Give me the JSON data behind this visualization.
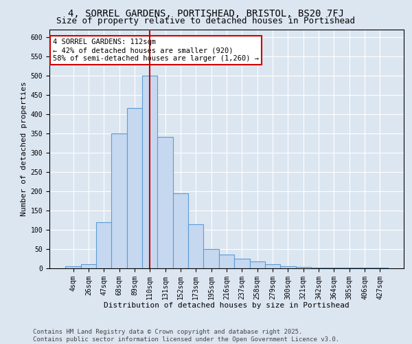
{
  "title_line1": "4, SORREL GARDENS, PORTISHEAD, BRISTOL, BS20 7FJ",
  "title_line2": "Size of property relative to detached houses in Portishead",
  "xlabel": "Distribution of detached houses by size in Portishead",
  "ylabel": "Number of detached properties",
  "categories": [
    "4sqm",
    "26sqm",
    "47sqm",
    "68sqm",
    "89sqm",
    "110sqm",
    "131sqm",
    "152sqm",
    "173sqm",
    "195sqm",
    "216sqm",
    "237sqm",
    "258sqm",
    "279sqm",
    "300sqm",
    "321sqm",
    "342sqm",
    "364sqm",
    "385sqm",
    "406sqm",
    "427sqm"
  ],
  "values": [
    5,
    10,
    120,
    350,
    415,
    500,
    340,
    195,
    115,
    50,
    35,
    25,
    17,
    11,
    5,
    3,
    2,
    1,
    1,
    1,
    2
  ],
  "bar_color": "#c5d8f0",
  "bar_edge_color": "#5b9bd5",
  "vline_x_idx": 5,
  "vline_color": "#cc0000",
  "annotation_text": "4 SORREL GARDENS: 112sqm\n← 42% of detached houses are smaller (920)\n58% of semi-detached houses are larger (1,260) →",
  "annotation_box_color": "#ffffff",
  "annotation_box_edge_color": "#cc0000",
  "ylim": [
    0,
    620
  ],
  "yticks": [
    0,
    50,
    100,
    150,
    200,
    250,
    300,
    350,
    400,
    450,
    500,
    550,
    600
  ],
  "background_color": "#dce6f1",
  "plot_background_color": "#dce6f1",
  "footer_line1": "Contains HM Land Registry data © Crown copyright and database right 2025.",
  "footer_line2": "Contains public sector information licensed under the Open Government Licence v3.0.",
  "title_fontsize": 10,
  "subtitle_fontsize": 9,
  "axis_label_fontsize": 8,
  "tick_fontsize": 7,
  "annotation_fontsize": 7.5,
  "footer_fontsize": 6.5
}
